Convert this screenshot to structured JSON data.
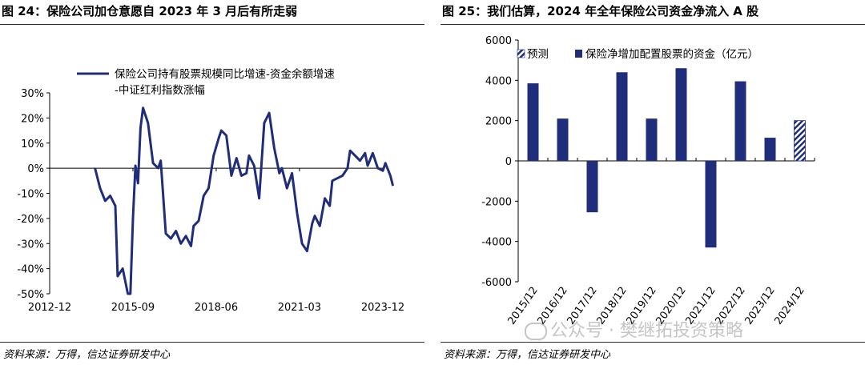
{
  "left_panel": {
    "title": "图 24：保险公司加仓意愿自 2023 年 3 月后有所走弱",
    "source": "资料来源：万得，信达证券研发中心"
  },
  "right_panel": {
    "title": "图 25：我们估算，2024 年全年保险公司资金净流入 A 股",
    "source": "资料来源：万得，信达证券研发中心"
  },
  "watermark": {
    "text": "公众号 · 樊继拓投资策略"
  },
  "chart_data": [
    {
      "type": "line",
      "legend": [
        "保险公司持有股票规模同比增速-资金余额增速",
        "-中证红利指数涨幅"
      ],
      "legend_position": "top-right",
      "color": "#1f2d7a",
      "x_ticks": [
        "2012-12",
        "2015-09",
        "2018-06",
        "2021-03",
        "2023-12"
      ],
      "y_ticks": [
        "30%",
        "20%",
        "10%",
        "0%",
        "-10%",
        "-20%",
        "-30%",
        "-40%",
        "-50%"
      ],
      "ylim": [
        -50,
        30
      ],
      "grid": false,
      "series": [
        {
          "x": [
            "2014-06",
            "2014-08",
            "2014-10",
            "2014-12",
            "2015-02",
            "2015-03",
            "2015-05",
            "2015-07",
            "2015-08",
            "2015-09",
            "2015-10",
            "2015-11",
            "2015-12",
            "2016-01",
            "2016-03",
            "2016-05",
            "2016-07",
            "2016-08",
            "2016-10",
            "2016-12",
            "2017-02",
            "2017-04",
            "2017-06",
            "2017-08",
            "2017-09",
            "2017-11",
            "2018-01",
            "2018-03",
            "2018-05",
            "2018-07",
            "2018-08",
            "2018-10",
            "2018-12",
            "2019-02",
            "2019-04",
            "2019-06",
            "2019-07",
            "2019-09",
            "2019-11",
            "2020-01",
            "2020-03",
            "2020-05",
            "2020-07",
            "2020-08",
            "2020-10",
            "2020-12",
            "2021-02",
            "2021-04",
            "2021-06",
            "2021-08",
            "2021-09",
            "2021-11",
            "2022-01",
            "2022-03",
            "2022-04",
            "2022-06",
            "2022-08",
            "2022-10",
            "2022-11",
            "2023-01",
            "2023-03",
            "2023-05",
            "2023-06",
            "2023-08",
            "2023-10",
            "2023-12",
            "2024-01",
            "2024-03",
            "2024-04"
          ],
          "values": [
            0,
            -8,
            -13,
            -11,
            -15,
            -43,
            -40,
            -50,
            -50,
            -20,
            1,
            -6,
            16,
            24,
            18,
            2,
            0,
            3,
            -26,
            -28,
            -25,
            -30,
            -27,
            -31,
            -23,
            -21,
            -11,
            -8,
            5,
            12,
            15,
            13,
            -3,
            4,
            -3,
            -2,
            5,
            1,
            -12,
            18,
            22,
            8,
            -2,
            0,
            -8,
            -2,
            -18,
            -30,
            -33,
            -22,
            -19,
            -23,
            -12,
            -15,
            -5,
            -4,
            -3,
            0,
            7,
            5,
            3,
            6,
            1,
            6,
            0,
            -1,
            2,
            -3,
            -7
          ]
        }
      ]
    },
    {
      "type": "bar",
      "legend": [
        "预测",
        "保险净增加配置股票的资金（亿元）"
      ],
      "legend_position": "top",
      "color": "#1f2d7a",
      "categories": [
        "2015/12",
        "2016/12",
        "2017/12",
        "2018/12",
        "2019/12",
        "2020/12",
        "2021/12",
        "2022/12",
        "2023/12",
        "2024/12"
      ],
      "values": [
        3850,
        2100,
        -2550,
        4400,
        2100,
        4600,
        -4300,
        3950,
        1150,
        2000
      ],
      "forecast_index": [
        9
      ],
      "y_ticks": [
        "6000",
        "4000",
        "2000",
        "0",
        "-2000",
        "-4000",
        "-6000"
      ],
      "ylim": [
        -6000,
        6000
      ],
      "grid": false
    }
  ]
}
